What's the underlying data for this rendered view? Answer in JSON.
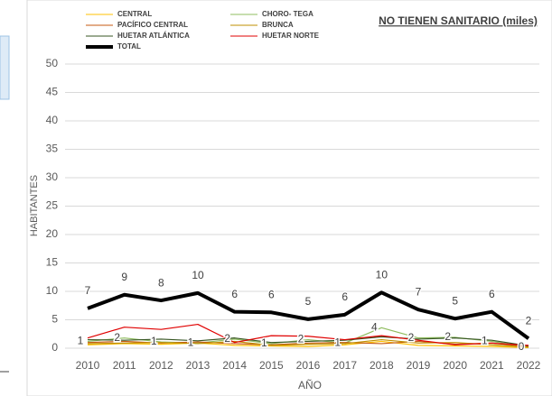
{
  "chart_data": {
    "type": "line",
    "title": "NO TIENEN SANITARIO (miles)",
    "x_label": "AÑO",
    "y_label": "HABITANTES",
    "categories": [
      "2010",
      "2011",
      "2012",
      "2013",
      "2014",
      "2015",
      "2016",
      "2017",
      "2018",
      "2019",
      "2020",
      "2021",
      "2022"
    ],
    "ylim": [
      0,
      50
    ],
    "yticks": [
      0,
      5,
      10,
      15,
      20,
      25,
      30,
      35,
      40,
      45,
      50
    ],
    "grid": true,
    "series": [
      {
        "name": "CENTRAL",
        "color": "#ffc000",
        "values": [
          0.6,
          0.8,
          0.7,
          0.9,
          0.5,
          0.4,
          0.3,
          0.6,
          1.2,
          0.5,
          0.4,
          0.3,
          0.1
        ]
      },
      {
        "name": "CHORO- TEGA",
        "color": "#8fbc5f",
        "values": [
          1.2,
          1.8,
          1.1,
          0.9,
          1.6,
          0.8,
          1.5,
          0.9,
          3.6,
          1.8,
          1.9,
          1.2,
          0.2
        ],
        "value_labels": [
          "1",
          "2",
          "1",
          "1",
          "2",
          "1",
          "2",
          "1",
          "4",
          "2",
          "2",
          "1",
          "0"
        ]
      },
      {
        "name": "PACÍFICO CENTRAL",
        "color": "#c55a11",
        "values": [
          1.0,
          1.2,
          0.9,
          1.1,
          0.8,
          0.6,
          0.9,
          1.0,
          0.8,
          1.2,
          0.7,
          0.9,
          0.3
        ]
      },
      {
        "name": "BRUNCA",
        "color": "#bf8f00",
        "values": [
          0.8,
          0.9,
          1.0,
          0.8,
          1.2,
          0.5,
          0.7,
          0.8,
          1.5,
          0.9,
          1.0,
          0.6,
          0.2
        ]
      },
      {
        "name": "HUETAR ATLÁNTICA",
        "color": "#375623",
        "values": [
          1.5,
          1.4,
          1.6,
          1.3,
          1.8,
          1.0,
          1.2,
          1.4,
          2.0,
          1.6,
          1.8,
          1.4,
          0.4
        ]
      },
      {
        "name": "HUETAR NORTE",
        "color": "#e00000",
        "values": [
          1.8,
          3.7,
          3.3,
          4.2,
          1.0,
          2.2,
          2.1,
          1.5,
          2.2,
          1.4,
          0.6,
          0.9,
          0.5
        ]
      },
      {
        "name": "TOTAL",
        "color": "#000000",
        "values": [
          7.0,
          9.4,
          8.4,
          9.7,
          6.4,
          6.3,
          5.1,
          5.9,
          9.8,
          6.8,
          5.2,
          6.4,
          1.7
        ],
        "value_labels": [
          "7",
          "9",
          "8",
          "10",
          "6",
          "6",
          "5",
          "6",
          "10",
          "7",
          "5",
          "6",
          "2"
        ]
      }
    ]
  }
}
